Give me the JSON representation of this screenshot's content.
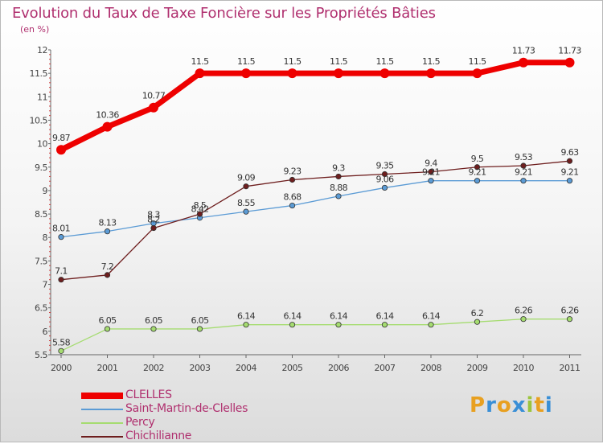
{
  "header": {
    "title": "Evolution du Taux de Taxe Foncière sur les Propriétés Bâties",
    "unit": "(en %)"
  },
  "brand": {
    "text": "Proxiti",
    "colors": [
      "#e8a020",
      "#3a8fd6",
      "#e8a020",
      "#3a8fd6",
      "#9bc53d",
      "#e8a020",
      "#3a8fd6"
    ]
  },
  "chart_data": {
    "type": "line",
    "title": "Evolution du Taux de Taxe Foncière sur les Propriétés Bâties",
    "ylabel": "(en %)",
    "xlabel": "",
    "x": [
      "2000",
      "2001",
      "2002",
      "2003",
      "2004",
      "2005",
      "2006",
      "2007",
      "2008",
      "2009",
      "2010",
      "2011"
    ],
    "ylim": [
      5.5,
      12
    ],
    "yticks": [
      "5.5",
      "6",
      "6.5",
      "7",
      "7.5",
      "8",
      "8.5",
      "9",
      "9.5",
      "10",
      "10.5",
      "11",
      "11.5",
      "12"
    ],
    "grid": false,
    "legend": "bottom-left",
    "series": [
      {
        "name": "CLELLES",
        "color": "#ee0000",
        "values": [
          9.87,
          10.36,
          10.77,
          11.5,
          11.5,
          11.5,
          11.5,
          11.5,
          11.5,
          11.5,
          11.73,
          11.73
        ],
        "labels": [
          "9.87",
          "10.36",
          "10.77",
          "11.5",
          "11.5",
          "11.5",
          "11.5",
          "11.5",
          "11.5",
          "11.5",
          "11.73",
          "11.73"
        ]
      },
      {
        "name": "Saint-Martin-de-Clelles",
        "color": "#5b9bd5",
        "values": [
          8.01,
          8.13,
          8.3,
          8.42,
          8.55,
          8.68,
          8.88,
          9.06,
          9.21,
          9.21,
          9.21,
          9.21
        ],
        "labels": [
          "8.01",
          "8.13",
          "8.3",
          "8.42",
          "8.55",
          "8.68",
          "8.88",
          "9.06",
          "9.21",
          "9.21",
          "9.21",
          "9.21"
        ]
      },
      {
        "name": "Percy",
        "color": "#a5dc70",
        "values": [
          5.58,
          6.05,
          6.05,
          6.05,
          6.14,
          6.14,
          6.14,
          6.14,
          6.14,
          6.2,
          6.26,
          6.26
        ],
        "labels": [
          "5.58",
          "6.05",
          "6.05",
          "6.05",
          "6.14",
          "6.14",
          "6.14",
          "6.14",
          "6.14",
          "6.2",
          "6.26",
          "6.26"
        ]
      },
      {
        "name": "Chichilianne",
        "color": "#6e1e1e",
        "values": [
          7.1,
          7.2,
          8.2,
          8.5,
          9.09,
          9.23,
          9.3,
          9.35,
          9.4,
          9.5,
          9.53,
          9.63
        ],
        "labels": [
          "7.1",
          "7.2",
          "8.2",
          "8.5",
          "9.09",
          "9.23",
          "9.3",
          "9.35",
          "9.4",
          "9.5",
          "9.53",
          "9.63"
        ]
      }
    ]
  }
}
